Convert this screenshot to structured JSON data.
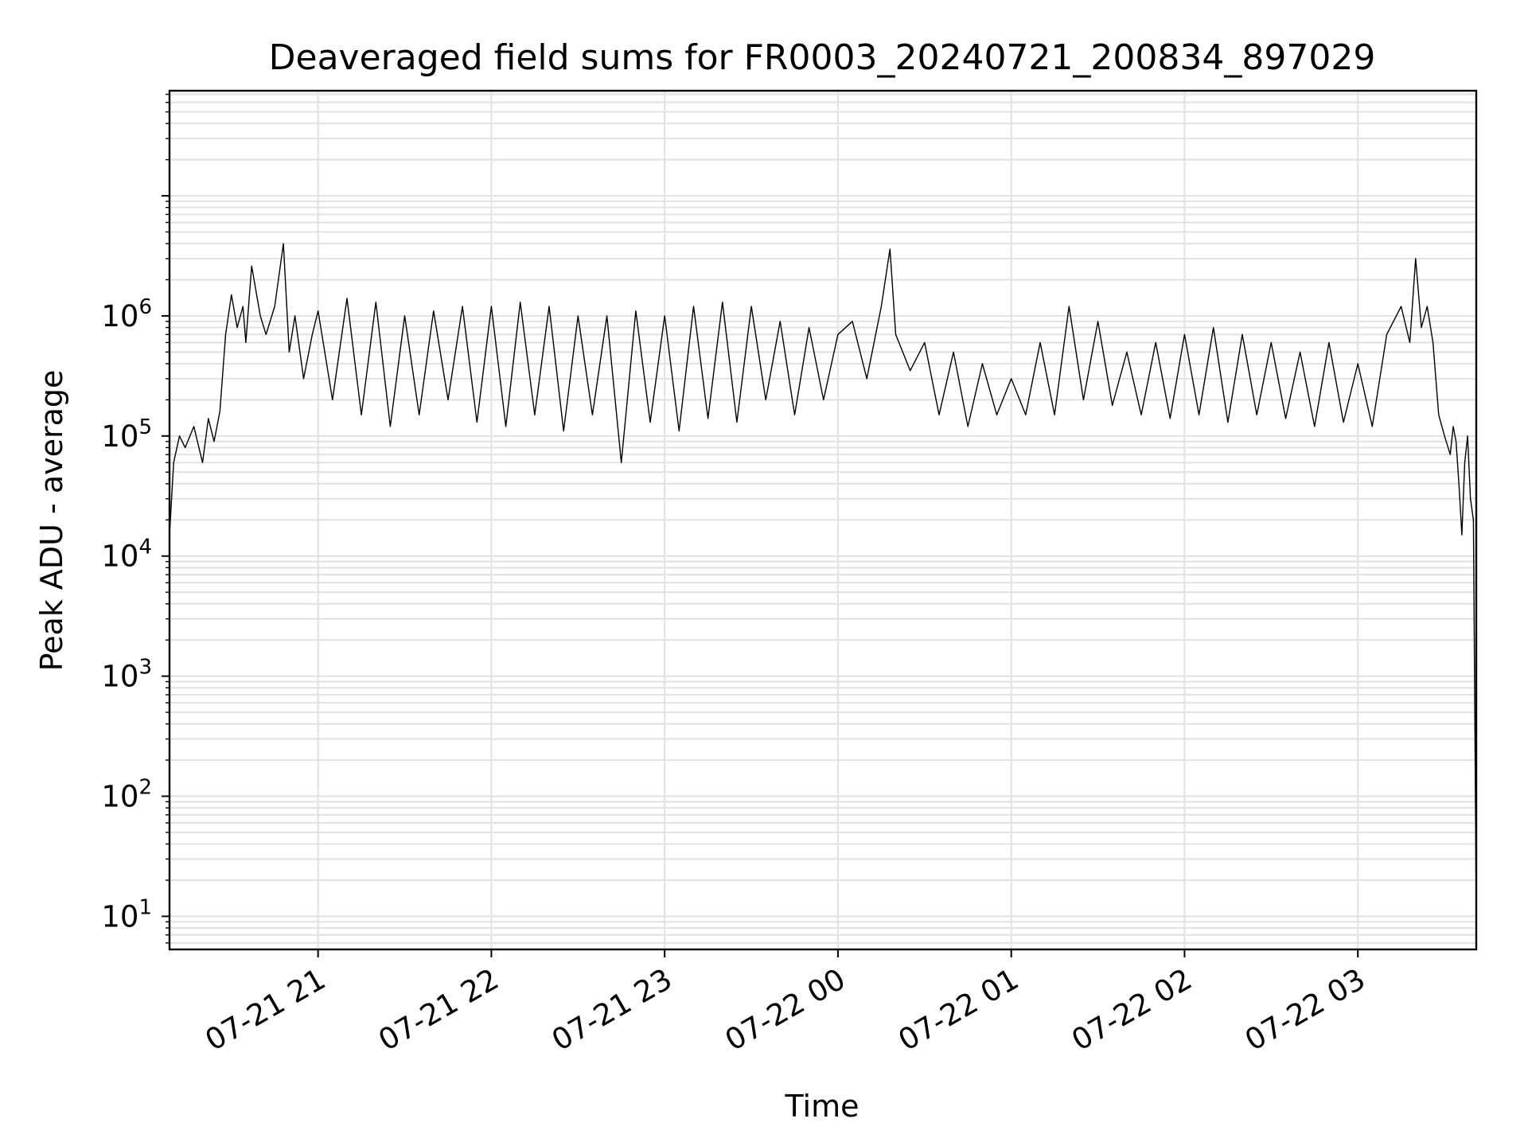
{
  "chart_data": {
    "type": "line",
    "title": "Deaveraged field sums for FR0003_20240721_200834_897029",
    "xlabel": "Time",
    "ylabel": "Peak ADU - average",
    "yscale": "log",
    "ylim": [
      5.3,
      75000000
    ],
    "xlim": [
      "2024-07-21 20:08:34",
      "2024-07-22 03:41:00"
    ],
    "grid": true,
    "legend": "none",
    "line_color": "#000000",
    "grid_color": "#e3e3e3",
    "x_ticks": [
      {
        "value": "2024-07-21 21:00",
        "label": "07-21 21"
      },
      {
        "value": "2024-07-21 22:00",
        "label": "07-21 22"
      },
      {
        "value": "2024-07-21 23:00",
        "label": "07-21 23"
      },
      {
        "value": "2024-07-22 00:00",
        "label": "07-22 00"
      },
      {
        "value": "2024-07-22 01:00",
        "label": "07-22 01"
      },
      {
        "value": "2024-07-22 02:00",
        "label": "07-22 02"
      },
      {
        "value": "2024-07-22 03:00",
        "label": "07-22 03"
      }
    ],
    "y_ticks": [
      {
        "value": 10,
        "base": "10",
        "exp": "1"
      },
      {
        "value": 100,
        "base": "10",
        "exp": "2"
      },
      {
        "value": 1000,
        "base": "10",
        "exp": "3"
      },
      {
        "value": 10000,
        "base": "10",
        "exp": "4"
      },
      {
        "value": 100000,
        "base": "10",
        "exp": "5"
      },
      {
        "value": 1000000,
        "base": "10",
        "exp": "6"
      }
    ],
    "series": [
      {
        "x": [
          "2024-07-21 20:08:34",
          "2024-07-21 20:10",
          "2024-07-21 20:12",
          "2024-07-21 20:14",
          "2024-07-21 20:17",
          "2024-07-21 20:20",
          "2024-07-21 20:22",
          "2024-07-21 20:24",
          "2024-07-21 20:26",
          "2024-07-21 20:28",
          "2024-07-21 20:30",
          "2024-07-21 20:32",
          "2024-07-21 20:34",
          "2024-07-21 20:35",
          "2024-07-21 20:37",
          "2024-07-21 20:40",
          "2024-07-21 20:42",
          "2024-07-21 20:45",
          "2024-07-21 20:48",
          "2024-07-21 20:50",
          "2024-07-21 20:52",
          "2024-07-21 20:55",
          "2024-07-21 20:58",
          "2024-07-21 21:00",
          "2024-07-21 21:05",
          "2024-07-21 21:10",
          "2024-07-21 21:15",
          "2024-07-21 21:20",
          "2024-07-21 21:25",
          "2024-07-21 21:30",
          "2024-07-21 21:35",
          "2024-07-21 21:40",
          "2024-07-21 21:45",
          "2024-07-21 21:50",
          "2024-07-21 21:55",
          "2024-07-21 22:00",
          "2024-07-21 22:05",
          "2024-07-21 22:10",
          "2024-07-21 22:15",
          "2024-07-21 22:20",
          "2024-07-21 22:25",
          "2024-07-21 22:30",
          "2024-07-21 22:35",
          "2024-07-21 22:40",
          "2024-07-21 22:45",
          "2024-07-21 22:50",
          "2024-07-21 22:55",
          "2024-07-21 23:00",
          "2024-07-21 23:05",
          "2024-07-21 23:10",
          "2024-07-21 23:15",
          "2024-07-21 23:20",
          "2024-07-21 23:25",
          "2024-07-21 23:30",
          "2024-07-21 23:35",
          "2024-07-21 23:40",
          "2024-07-21 23:45",
          "2024-07-21 23:50",
          "2024-07-21 23:55",
          "2024-07-22 00:00",
          "2024-07-22 00:05",
          "2024-07-22 00:10",
          "2024-07-22 00:15",
          "2024-07-22 00:18",
          "2024-07-22 00:20",
          "2024-07-22 00:25",
          "2024-07-22 00:30",
          "2024-07-22 00:35",
          "2024-07-22 00:40",
          "2024-07-22 00:45",
          "2024-07-22 00:50",
          "2024-07-22 00:55",
          "2024-07-22 01:00",
          "2024-07-22 01:05",
          "2024-07-22 01:10",
          "2024-07-22 01:15",
          "2024-07-22 01:20",
          "2024-07-22 01:25",
          "2024-07-22 01:30",
          "2024-07-22 01:35",
          "2024-07-22 01:40",
          "2024-07-22 01:45",
          "2024-07-22 01:50",
          "2024-07-22 01:55",
          "2024-07-22 02:00",
          "2024-07-22 02:05",
          "2024-07-22 02:10",
          "2024-07-22 02:15",
          "2024-07-22 02:20",
          "2024-07-22 02:25",
          "2024-07-22 02:30",
          "2024-07-22 02:35",
          "2024-07-22 02:40",
          "2024-07-22 02:45",
          "2024-07-22 02:50",
          "2024-07-22 02:55",
          "2024-07-22 03:00",
          "2024-07-22 03:05",
          "2024-07-22 03:10",
          "2024-07-22 03:15",
          "2024-07-22 03:18",
          "2024-07-22 03:20",
          "2024-07-22 03:22",
          "2024-07-22 03:24",
          "2024-07-22 03:26",
          "2024-07-22 03:28",
          "2024-07-22 03:30",
          "2024-07-22 03:32",
          "2024-07-22 03:33",
          "2024-07-22 03:34",
          "2024-07-22 03:35",
          "2024-07-22 03:36",
          "2024-07-22 03:37",
          "2024-07-22 03:38",
          "2024-07-22 03:39",
          "2024-07-22 03:40",
          "2024-07-22 03:41"
        ],
        "y": [
          15000,
          60000,
          100000,
          80000,
          120000,
          60000,
          140000,
          90000,
          160000,
          700000,
          1500000,
          800000,
          1200000,
          600000,
          2600000,
          1000000,
          700000,
          1200000,
          4000000,
          500000,
          1000000,
          300000,
          700000,
          1100000,
          200000,
          1400000,
          150000,
          1300000,
          120000,
          1000000,
          150000,
          1100000,
          200000,
          1200000,
          130000,
          1200000,
          120000,
          1300000,
          150000,
          1200000,
          110000,
          1000000,
          150000,
          1000000,
          60000,
          1100000,
          130000,
          1000000,
          110000,
          1200000,
          140000,
          1300000,
          130000,
          1200000,
          200000,
          900000,
          150000,
          800000,
          200000,
          700000,
          900000,
          300000,
          1200000,
          3600000,
          700000,
          350000,
          600000,
          150000,
          500000,
          120000,
          400000,
          150000,
          300000,
          150000,
          600000,
          150000,
          1200000,
          200000,
          900000,
          180000,
          500000,
          150000,
          600000,
          140000,
          700000,
          150000,
          800000,
          130000,
          700000,
          150000,
          600000,
          140000,
          500000,
          120000,
          600000,
          130000,
          400000,
          120000,
          700000,
          1200000,
          600000,
          3000000,
          800000,
          1200000,
          600000,
          150000,
          100000,
          70000,
          120000,
          90000,
          40000,
          15000,
          60000,
          100000,
          30000,
          20000,
          10
        ]
      }
    ]
  }
}
